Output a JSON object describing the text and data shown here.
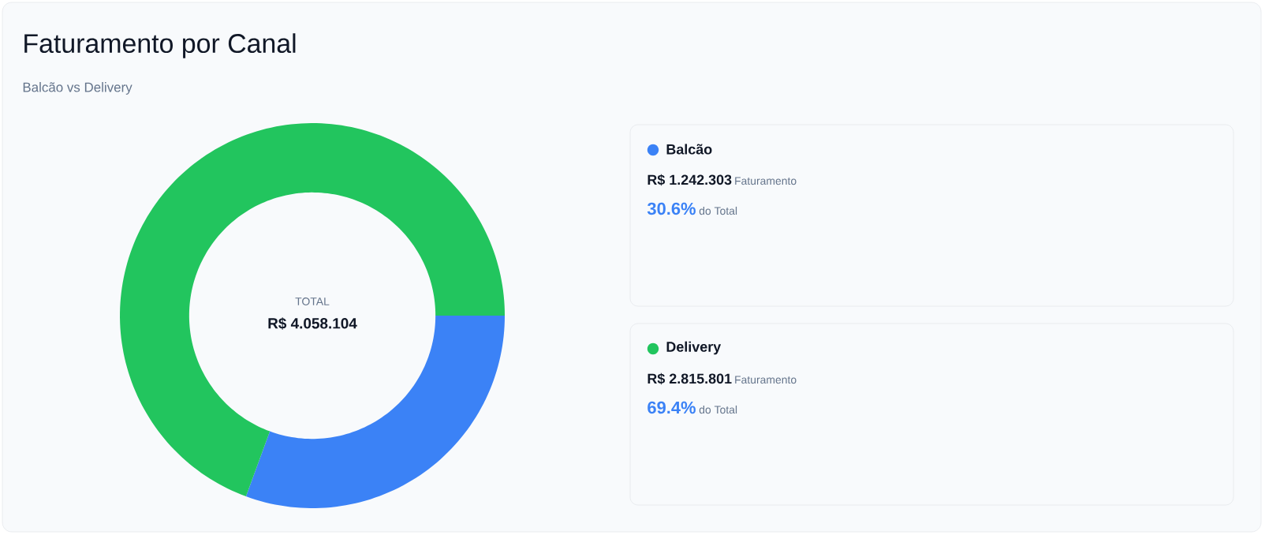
{
  "chart_data": {
    "type": "donut",
    "title": "Faturamento por Canal",
    "subtitle": "Balcão vs Delivery",
    "categories": [
      "Balcão",
      "Delivery"
    ],
    "values": [
      30.6,
      69.4
    ],
    "colors": [
      "#3b82f6",
      "#22c55e"
    ],
    "legend": "right",
    "annotations": [
      "TOTAL",
      "R$ 4.058.104",
      "R$ 1.242.303",
      "Faturamento",
      "30.6%",
      "do Total",
      "R$ 2.815.801",
      "Faturamento",
      "69.4%",
      "do Total"
    ]
  }
}
